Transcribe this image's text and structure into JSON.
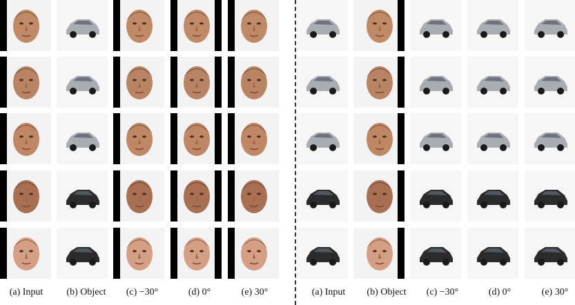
{
  "left_panel": {
    "columns": [
      {
        "label": "(a) Input",
        "content": "face",
        "bars": "left"
      },
      {
        "label": "(b) Object",
        "content": "car",
        "bars": "none"
      },
      {
        "label": "(c) −30°",
        "content": "face",
        "bars": "left"
      },
      {
        "label": "(d) 0°",
        "content": "face",
        "bars": "both"
      },
      {
        "label": "(e) 30°",
        "content": "face",
        "bars": "left"
      }
    ],
    "row_count": 5
  },
  "right_panel": {
    "columns": [
      {
        "label": "(a) Input",
        "content": "car",
        "bars": "none"
      },
      {
        "label": "(b) Object",
        "content": "face",
        "bars": "right"
      },
      {
        "label": "(c) −30°",
        "content": "car",
        "bars": "none"
      },
      {
        "label": "(d) 0°",
        "content": "car",
        "bars": "none"
      },
      {
        "label": "(e) 30°",
        "content": "car",
        "bars": "none"
      }
    ],
    "row_count": 5
  },
  "colors": {
    "bar": "#000000",
    "skin": "#c8906a",
    "car_silver": "#a9adb2",
    "car_dark": "#2b2b2b",
    "divider": "#333333"
  }
}
